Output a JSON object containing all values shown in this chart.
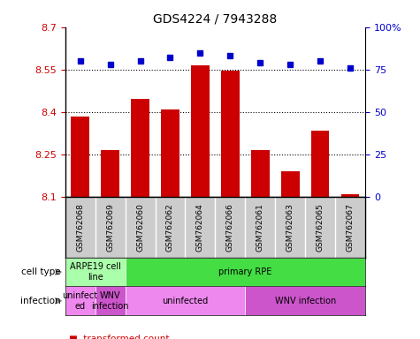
{
  "title": "GDS4224 / 7943288",
  "samples": [
    "GSM762068",
    "GSM762069",
    "GSM762060",
    "GSM762062",
    "GSM762064",
    "GSM762066",
    "GSM762061",
    "GSM762063",
    "GSM762065",
    "GSM762067"
  ],
  "transformed_counts": [
    8.385,
    8.265,
    8.445,
    8.41,
    8.565,
    8.545,
    8.265,
    8.19,
    8.335,
    8.11
  ],
  "percentile_ranks": [
    80,
    78,
    80,
    82,
    85,
    83,
    79,
    78,
    80,
    76
  ],
  "ylim_left": [
    8.1,
    8.7
  ],
  "ylim_right": [
    0,
    100
  ],
  "yticks_left": [
    8.1,
    8.25,
    8.4,
    8.55,
    8.7
  ],
  "yticks_right": [
    0,
    25,
    50,
    75,
    100
  ],
  "ytick_labels_left": [
    "8.1",
    "8.25",
    "8.4",
    "8.55",
    "8.7"
  ],
  "ytick_labels_right": [
    "0",
    "25",
    "50",
    "75",
    "100%"
  ],
  "hlines": [
    8.25,
    8.4,
    8.55
  ],
  "bar_color": "#cc0000",
  "dot_color": "#0000cc",
  "cell_types": [
    {
      "label": "ARPE19 cell\nline",
      "start": 0,
      "end": 2,
      "color": "#aaffaa"
    },
    {
      "label": "primary RPE",
      "start": 2,
      "end": 10,
      "color": "#44dd44"
    }
  ],
  "infection_groups": [
    {
      "label": "uninfect\ned",
      "start": 0,
      "end": 1,
      "color": "#ee88ee"
    },
    {
      "label": "WNV\ninfection",
      "start": 1,
      "end": 2,
      "color": "#cc55cc"
    },
    {
      "label": "uninfected",
      "start": 2,
      "end": 6,
      "color": "#ee88ee"
    },
    {
      "label": "WNV infection",
      "start": 6,
      "end": 10,
      "color": "#cc55cc"
    }
  ],
  "tick_color_left": "#cc0000",
  "tick_color_right": "#0000cc",
  "sample_bg_color": "#cccccc",
  "row_label_color": "#888888"
}
